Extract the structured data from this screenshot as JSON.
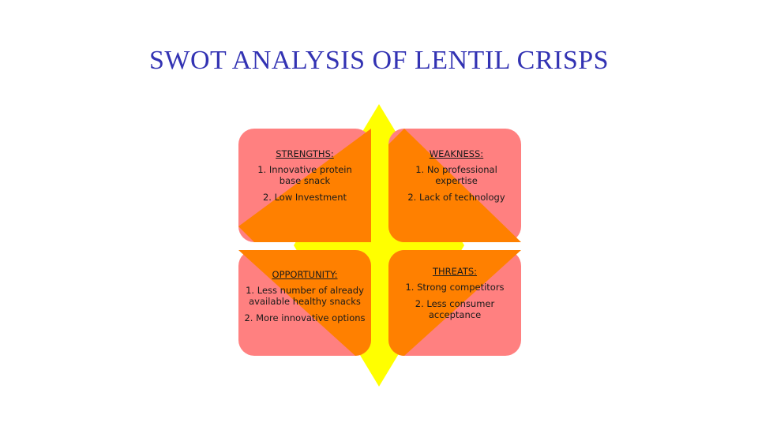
{
  "title": "SWOT ANALYSIS OF LENTIL CRISPS",
  "colors": {
    "diamond": "#ffff00",
    "quadrant_bg": "#ff8080",
    "quadrant_accent": "#ff8000",
    "title": "#3333b3"
  },
  "quadrants": {
    "strengths": {
      "heading": "STRENGTHS:",
      "items": [
        "1. Innovative protein base snack",
        "2. Low Investment"
      ]
    },
    "weakness": {
      "heading": "WEAKNESS:",
      "items": [
        "1. No professional expertise",
        "2. Lack of technology"
      ]
    },
    "opportunity": {
      "heading": "OPPORTUNITY:",
      "items": [
        "1. Less number of already available healthy snacks",
        "2. More innovative options"
      ]
    },
    "threats": {
      "heading": "THREATS:",
      "items": [
        "1. Strong competitors",
        "2. Less consumer acceptance"
      ]
    }
  }
}
